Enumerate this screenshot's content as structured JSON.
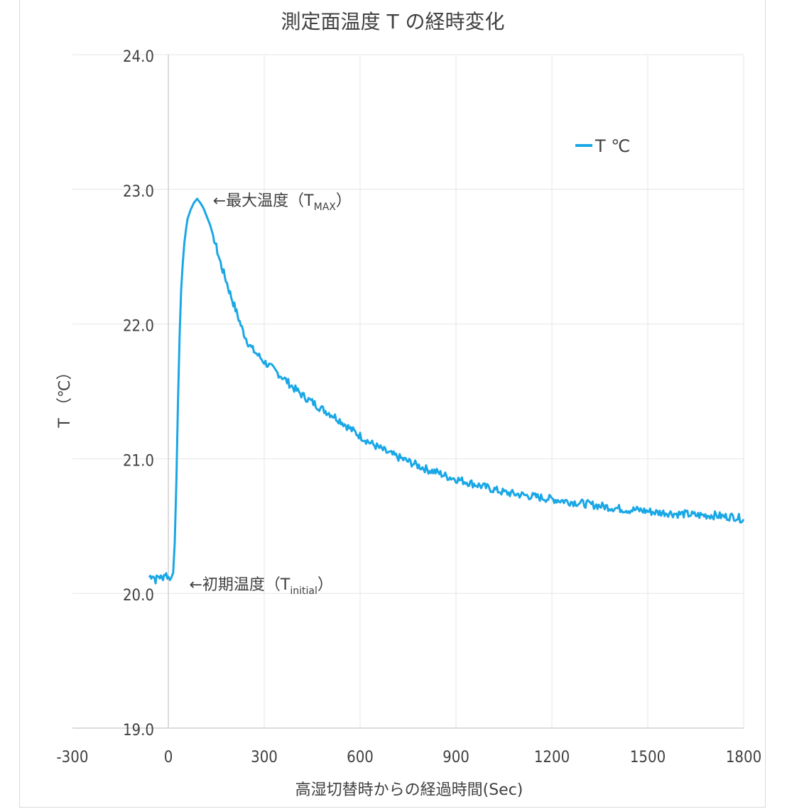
{
  "chart_data": {
    "type": "line",
    "title": "測定面温度 T の経時変化",
    "xlabel": "高湿切替時からの経過時間(Sec)",
    "ylabel": "T （℃）",
    "xlim": [
      -300,
      1800
    ],
    "ylim": [
      19.0,
      24.0
    ],
    "x_ticks": [
      -300,
      0,
      300,
      600,
      900,
      1200,
      1500,
      1800
    ],
    "x_tick_labels": [
      "-300",
      "0",
      "300",
      "600",
      "900",
      "1200",
      "1500",
      "1800"
    ],
    "y_ticks": [
      19.0,
      20.0,
      21.0,
      22.0,
      23.0,
      24.0
    ],
    "y_tick_labels": [
      "19.0",
      "20.0",
      "21.0",
      "22.0",
      "23.0",
      "24.0"
    ],
    "grid": true,
    "legend_position": "top-right",
    "series": [
      {
        "name": "T ℃",
        "color": "#1aa7e6",
        "points": [
          [
            -60,
            20.12
          ],
          [
            -50,
            20.14
          ],
          [
            -40,
            20.1
          ],
          [
            -30,
            20.13
          ],
          [
            -20,
            20.11
          ],
          [
            -10,
            20.15
          ],
          [
            0,
            20.12
          ],
          [
            5,
            20.1
          ],
          [
            10,
            20.14
          ],
          [
            15,
            20.18
          ],
          [
            20,
            20.35
          ],
          [
            25,
            20.8
          ],
          [
            30,
            21.4
          ],
          [
            35,
            21.9
          ],
          [
            40,
            22.25
          ],
          [
            45,
            22.45
          ],
          [
            50,
            22.6
          ],
          [
            55,
            22.7
          ],
          [
            60,
            22.78
          ],
          [
            70,
            22.85
          ],
          [
            80,
            22.9
          ],
          [
            90,
            22.93
          ],
          [
            100,
            22.9
          ],
          [
            110,
            22.86
          ],
          [
            120,
            22.8
          ],
          [
            130,
            22.74
          ],
          [
            140,
            22.66
          ],
          [
            150,
            22.57
          ],
          [
            160,
            22.48
          ],
          [
            170,
            22.4
          ],
          [
            180,
            22.33
          ],
          [
            190,
            22.25
          ],
          [
            200,
            22.18
          ],
          [
            210,
            22.11
          ],
          [
            220,
            22.04
          ],
          [
            230,
            21.97
          ],
          [
            240,
            21.91
          ],
          [
            250,
            21.86
          ],
          [
            260,
            21.82
          ],
          [
            280,
            21.77
          ],
          [
            300,
            21.72
          ],
          [
            330,
            21.66
          ],
          [
            360,
            21.6
          ],
          [
            390,
            21.53
          ],
          [
            420,
            21.47
          ],
          [
            450,
            21.42
          ],
          [
            480,
            21.37
          ],
          [
            510,
            21.33
          ],
          [
            540,
            21.28
          ],
          [
            570,
            21.22
          ],
          [
            600,
            21.17
          ],
          [
            630,
            21.12
          ],
          [
            660,
            21.08
          ],
          [
            690,
            21.04
          ],
          [
            720,
            21.01
          ],
          [
            750,
            20.98
          ],
          [
            780,
            20.95
          ],
          [
            810,
            20.92
          ],
          [
            840,
            20.9
          ],
          [
            870,
            20.87
          ],
          [
            900,
            20.85
          ],
          [
            930,
            20.83
          ],
          [
            960,
            20.81
          ],
          [
            990,
            20.79
          ],
          [
            1020,
            20.77
          ],
          [
            1050,
            20.75
          ],
          [
            1080,
            20.74
          ],
          [
            1110,
            20.73
          ],
          [
            1140,
            20.72
          ],
          [
            1170,
            20.71
          ],
          [
            1200,
            20.7
          ],
          [
            1230,
            20.69
          ],
          [
            1260,
            20.68
          ],
          [
            1290,
            20.67
          ],
          [
            1320,
            20.66
          ],
          [
            1350,
            20.65
          ],
          [
            1380,
            20.64
          ],
          [
            1410,
            20.63
          ],
          [
            1440,
            20.62
          ],
          [
            1470,
            20.62
          ],
          [
            1500,
            20.61
          ],
          [
            1530,
            20.6
          ],
          [
            1560,
            20.6
          ],
          [
            1590,
            20.59
          ],
          [
            1620,
            20.59
          ],
          [
            1650,
            20.58
          ],
          [
            1680,
            20.58
          ],
          [
            1710,
            20.58
          ],
          [
            1740,
            20.57
          ],
          [
            1770,
            20.57
          ],
          [
            1800,
            20.55
          ]
        ]
      }
    ],
    "annotations": [
      {
        "id": "tmax",
        "text": "←最大温度（T",
        "sub": "MAX",
        "close": "）",
        "x": 95,
        "y": 22.93
      },
      {
        "id": "tinit",
        "text": "←初期温度（T",
        "sub": "initial",
        "close": "）",
        "x": 30,
        "y": 20.08
      }
    ]
  }
}
